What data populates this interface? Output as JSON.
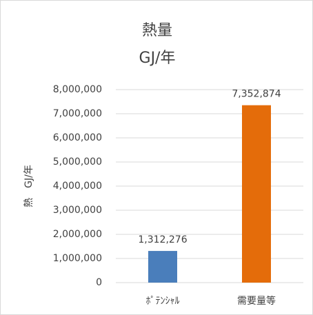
{
  "chart_data": {
    "type": "bar",
    "title": "熱量",
    "subtitle": "GJ/年",
    "y_label": "熱　GJ/年",
    "categories": [
      "ﾎﾟﾃﾝｼｬﾙ",
      "需要量等"
    ],
    "values": [
      1312276,
      7352874
    ],
    "value_labels": [
      "1,312,276",
      "7,352,874"
    ],
    "colors": [
      "#4a7ebb",
      "#e46c0a"
    ],
    "ylim": [
      0,
      8000000
    ],
    "yticks": [
      0,
      {
        "value": 1000000,
        "label": "1,000,000"
      },
      {
        "value": 2000000,
        "label": "2,000,000"
      },
      {
        "value": 3000000,
        "label": "3,000,000"
      },
      {
        "value": 4000000,
        "label": "4,000,000"
      },
      {
        "value": 5000000,
        "label": "5,000,000"
      },
      {
        "value": 6000000,
        "label": "6,000,000"
      },
      {
        "value": 7000000,
        "label": "7,000,000"
      },
      {
        "value": 8000000,
        "label": "8,000,000"
      }
    ],
    "grid": true
  }
}
